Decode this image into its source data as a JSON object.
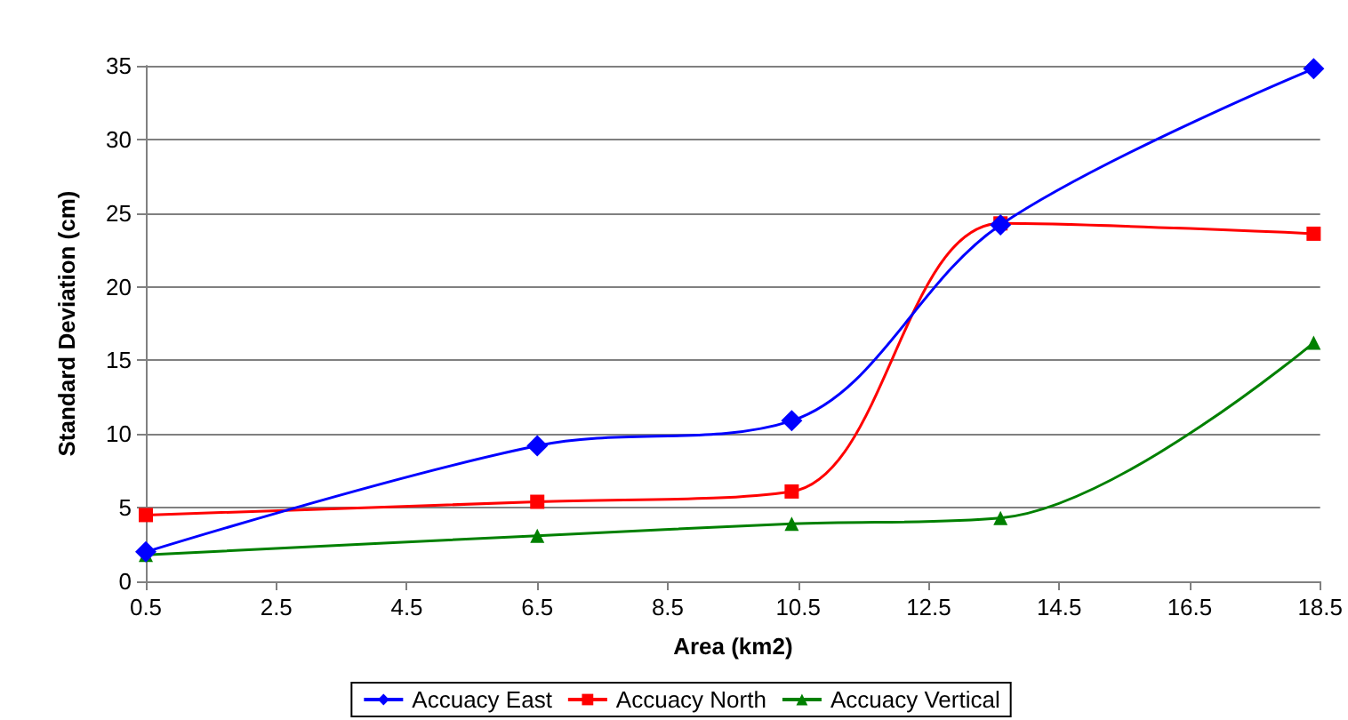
{
  "chart_data": {
    "type": "line",
    "xlabel": "Area (km2)",
    "ylabel": "Standard Deviation (cm)",
    "x": [
      0.5,
      6.5,
      10.4,
      13.6,
      18.4
    ],
    "series": [
      {
        "name": "Accuacy East",
        "color": "#0000ff",
        "marker": "diamond",
        "values": [
          2.0,
          9.2,
          10.9,
          24.2,
          34.8
        ]
      },
      {
        "name": "Accuacy North",
        "color": "#ff0000",
        "marker": "square",
        "values": [
          4.5,
          5.4,
          6.1,
          24.3,
          23.6
        ]
      },
      {
        "name": "Accuacy Vertical",
        "color": "#008000",
        "marker": "triangle",
        "values": [
          1.8,
          3.1,
          3.9,
          4.3,
          16.2
        ]
      }
    ],
    "xlim": [
      0.5,
      18.5
    ],
    "xticks": [
      0.5,
      2.5,
      4.5,
      6.5,
      8.5,
      10.5,
      12.5,
      14.5,
      16.5,
      18.5
    ],
    "ylim": [
      0,
      35
    ],
    "yticks": [
      0,
      5,
      10,
      15,
      20,
      25,
      30,
      35
    ],
    "grid": "y",
    "legend": "bottom",
    "line_style": "solid"
  }
}
